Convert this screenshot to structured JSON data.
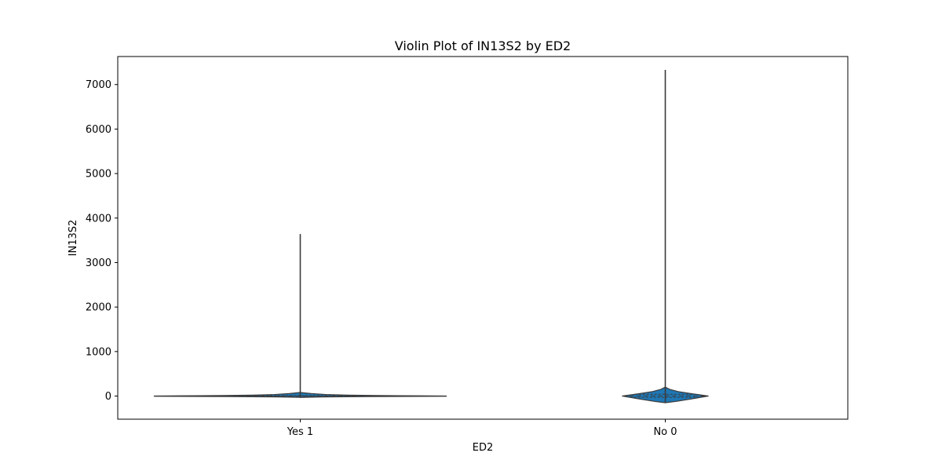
{
  "chart_data": {
    "type": "violin",
    "title": "Violin Plot of IN13S2 by ED2",
    "xlabel": "ED2",
    "ylabel": "IN13S2",
    "categories": [
      "Yes 1",
      "No 0"
    ],
    "ylim": [
      -520,
      7630
    ],
    "yticks": [
      0,
      1000,
      2000,
      3000,
      4000,
      5000,
      6000,
      7000
    ],
    "grid": false,
    "legend": "none",
    "fill_color": "#1f77b4",
    "edge_color": "#3a3a3a",
    "violins": [
      {
        "category": "Yes 1",
        "max": 3640,
        "median": 0,
        "q1": -8,
        "q3": 10,
        "density_profile": [
          {
            "y": -30,
            "half_width": 0.0
          },
          {
            "y": -20,
            "half_width": 0.12
          },
          {
            "y": -12,
            "half_width": 0.4
          },
          {
            "y": -5,
            "half_width": 0.8
          },
          {
            "y": 0,
            "half_width": 0.8
          },
          {
            "y": 5,
            "half_width": 0.66
          },
          {
            "y": 12,
            "half_width": 0.42
          },
          {
            "y": 20,
            "half_width": 0.26
          },
          {
            "y": 35,
            "half_width": 0.14
          },
          {
            "y": 55,
            "half_width": 0.06
          },
          {
            "y": 80,
            "half_width": 0.0
          }
        ]
      },
      {
        "category": "No 0",
        "max": 7330,
        "median": 0,
        "q1": -30,
        "q3": 40,
        "density_profile": [
          {
            "y": -150,
            "half_width": 0.0
          },
          {
            "y": -120,
            "half_width": 0.06
          },
          {
            "y": -60,
            "half_width": 0.15
          },
          {
            "y": 0,
            "half_width": 0.235
          },
          {
            "y": 50,
            "half_width": 0.15
          },
          {
            "y": 100,
            "half_width": 0.07
          },
          {
            "y": 150,
            "half_width": 0.025
          },
          {
            "y": 200,
            "half_width": 0.0
          }
        ]
      }
    ]
  }
}
